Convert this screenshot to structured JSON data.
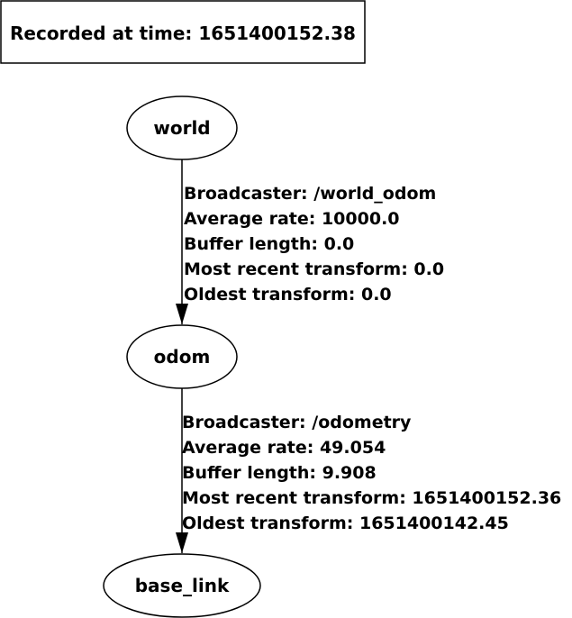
{
  "header": {
    "text": "Recorded at time: 1651400152.38"
  },
  "nodes": [
    {
      "id": "world",
      "label": "world"
    },
    {
      "id": "odom",
      "label": "odom"
    },
    {
      "id": "base_link",
      "label": "base_link"
    }
  ],
  "edges": [
    {
      "from": "world",
      "to": "odom",
      "lines": [
        "Broadcaster: /world_odom",
        "Average rate: 10000.0",
        "Buffer length: 0.0",
        "Most recent transform: 0.0",
        "Oldest transform: 0.0"
      ]
    },
    {
      "from": "odom",
      "to": "base_link",
      "lines": [
        "Broadcaster: /odometry",
        "Average rate: 49.054",
        "Buffer length: 9.908",
        "Most recent transform: 1651400152.36",
        "Oldest transform: 1651400142.45"
      ]
    }
  ]
}
